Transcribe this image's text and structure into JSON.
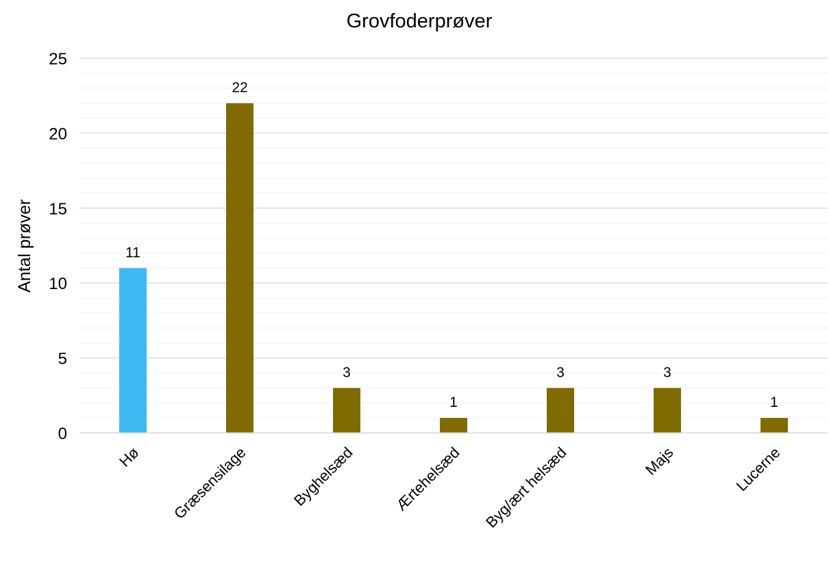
{
  "chart_data": {
    "type": "bar",
    "title": "Grovfoderprøver",
    "xlabel": "",
    "ylabel": "Antal prøver",
    "categories": [
      "Hø",
      "Græsensilage",
      "Byghelsæd",
      "Ærtehelsæd",
      "Byg/ært helsæd",
      "Majs",
      "Lucerne"
    ],
    "values": [
      11,
      22,
      3,
      1,
      3,
      3,
      1
    ],
    "data_labels": [
      "11",
      "22",
      "3",
      "1",
      "3",
      "3",
      "1"
    ],
    "bar_colors": [
      "#3dbaf2",
      "#7f6b00",
      "#7f6b00",
      "#7f6b00",
      "#7f6b00",
      "#7f6b00",
      "#7f6b00"
    ],
    "ylim": [
      0,
      25
    ],
    "yticks": [
      0,
      5,
      10,
      15,
      20,
      25
    ],
    "ytick_labels": [
      "0",
      "5",
      "10",
      "15",
      "20",
      "25"
    ],
    "minor_grid_step": 1,
    "grid": true,
    "legend": "none"
  }
}
